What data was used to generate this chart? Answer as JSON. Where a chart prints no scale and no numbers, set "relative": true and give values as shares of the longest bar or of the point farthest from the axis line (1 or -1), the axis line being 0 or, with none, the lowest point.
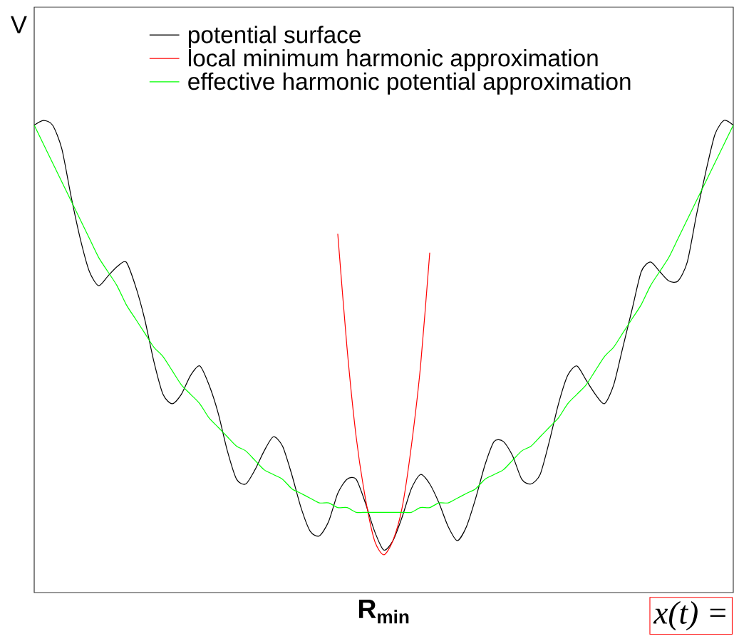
{
  "chart_data": {
    "type": "line",
    "relative": true,
    "xlabel": "R$_{min}$",
    "ylabel": "V",
    "legend": "top left",
    "categories": [
      null,
      null,
      null,
      null,
      null,
      null,
      null,
      null,
      null,
      null,
      null,
      null,
      null,
      null,
      null,
      null,
      null,
      null,
      null,
      null,
      null,
      null,
      null,
      null,
      null,
      null,
      null,
      null,
      null,
      null,
      null,
      null,
      null,
      null,
      null,
      null,
      null,
      null,
      null,
      null,
      null,
      null,
      null,
      null,
      null,
      null,
      null,
      null,
      null,
      null,
      null,
      null,
      null,
      null,
      null,
      null,
      null,
      null,
      null,
      null,
      null,
      null,
      null,
      null,
      null,
      null,
      null,
      null,
      null,
      null,
      null,
      null,
      null,
      null,
      null,
      null,
      null
    ],
    "series": [
      {
        "name": "potential surface",
        "color": "#000000",
        "values": [
          0.99,
          1.0,
          0.99,
          0.94,
          0.84,
          0.75,
          0.68,
          0.65,
          0.67,
          0.69,
          0.7,
          0.65,
          0.58,
          0.49,
          0.42,
          0.4,
          0.42,
          0.46,
          0.48,
          0.44,
          0.38,
          0.3,
          0.24,
          0.23,
          0.26,
          0.3,
          0.33,
          0.31,
          0.25,
          0.18,
          0.13,
          0.12,
          0.15,
          0.21,
          0.24,
          0.24,
          0.19,
          0.13,
          0.09,
          0.11,
          0.16,
          0.22,
          0.25,
          0.23,
          0.19,
          0.14,
          0.11,
          0.14,
          0.2,
          0.27,
          0.32,
          0.32,
          0.29,
          0.24,
          0.23,
          0.25,
          0.32,
          0.4,
          0.46,
          0.48,
          0.45,
          0.42,
          0.4,
          0.44,
          0.52,
          0.6,
          0.68,
          0.7,
          0.68,
          0.66,
          0.66,
          0.7,
          0.8,
          0.89,
          0.97,
          1.0,
          0.99
        ]
      },
      {
        "name": "local minimum harmonic approximation",
        "color": "#ff0000",
        "values": [
          null,
          null,
          null,
          null,
          null,
          null,
          null,
          null,
          null,
          null,
          null,
          null,
          null,
          null,
          null,
          null,
          null,
          null,
          null,
          null,
          null,
          null,
          null,
          null,
          null,
          null,
          null,
          null,
          null,
          null,
          null,
          null,
          null,
          0.76,
          0.52,
          0.33,
          0.2,
          0.11,
          0.08,
          0.11,
          0.18,
          0.31,
          0.48,
          0.72,
          null,
          null,
          null,
          null,
          null,
          null,
          null,
          null,
          null,
          null,
          null,
          null,
          null,
          null,
          null,
          null,
          null,
          null,
          null,
          null,
          null,
          null,
          null,
          null,
          null,
          null,
          null,
          null,
          null,
          null,
          null,
          null,
          null
        ]
      },
      {
        "name": "effective harmonic potential approximation",
        "color": "#00ff00",
        "values": [
          0.99,
          0.95,
          0.91,
          0.87,
          0.83,
          0.79,
          0.75,
          0.71,
          0.68,
          0.65,
          0.61,
          0.58,
          0.55,
          0.52,
          0.5,
          0.47,
          0.44,
          0.42,
          0.4,
          0.37,
          0.35,
          0.33,
          0.31,
          0.3,
          0.28,
          0.26,
          0.25,
          0.24,
          0.22,
          0.21,
          0.2,
          0.19,
          0.19,
          0.18,
          0.18,
          0.17,
          0.17,
          0.17,
          0.17,
          0.17,
          0.17,
          0.17,
          0.18,
          0.18,
          0.19,
          0.19,
          0.2,
          0.21,
          0.22,
          0.24,
          0.25,
          0.26,
          0.28,
          0.3,
          0.31,
          0.33,
          0.35,
          0.37,
          0.4,
          0.42,
          0.44,
          0.47,
          0.5,
          0.52,
          0.55,
          0.58,
          0.61,
          0.65,
          0.68,
          0.71,
          0.75,
          0.79,
          0.83,
          0.87,
          0.91,
          0.95,
          0.99
        ]
      }
    ],
    "annotations": [
      "x(t) ="
    ]
  }
}
